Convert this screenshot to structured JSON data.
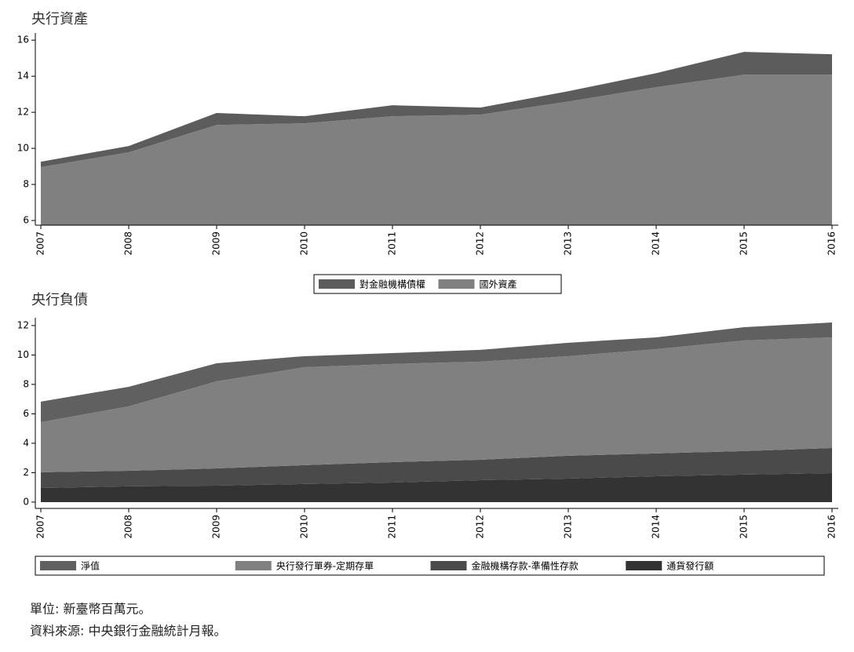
{
  "chart_data": [
    {
      "type": "area",
      "title": "央行資產",
      "categories": [
        "2007",
        "2008",
        "2009",
        "2010",
        "2011",
        "2012",
        "2013",
        "2014",
        "2015",
        "2016"
      ],
      "series": [
        {
          "name": "對金融機構債權",
          "color": "#5c5c5c",
          "values": [
            0.3,
            0.35,
            0.66,
            0.39,
            0.61,
            0.39,
            0.57,
            0.78,
            1.26,
            1.13
          ]
        },
        {
          "name": "國外資產",
          "color": "#808080",
          "values": [
            8.96,
            9.78,
            11.3,
            11.39,
            11.78,
            11.87,
            12.6,
            13.39,
            14.09,
            14.09
          ]
        }
      ],
      "ylim": [
        5.74,
        16.4
      ],
      "yticks": [
        6,
        8,
        10,
        12,
        14,
        16
      ],
      "legend": "bottom"
    },
    {
      "type": "area",
      "title": "央行負債",
      "categories": [
        "2007",
        "2008",
        "2009",
        "2010",
        "2011",
        "2012",
        "2013",
        "2014",
        "2015",
        "2016"
      ],
      "series": [
        {
          "name": "淨值",
          "color": "#606060",
          "values": [
            1.39,
            1.33,
            1.23,
            0.75,
            0.74,
            0.8,
            0.91,
            0.8,
            0.9,
            1.01
          ]
        },
        {
          "name": "央行發行單券-定期存單",
          "color": "#808080",
          "values": [
            3.41,
            4.38,
            5.92,
            6.66,
            6.67,
            6.67,
            6.77,
            7.09,
            7.52,
            7.52
          ]
        },
        {
          "name": "金融機構存款-準備性存款",
          "color": "#4a4a4a",
          "values": [
            1.07,
            1.06,
            1.17,
            1.28,
            1.39,
            1.39,
            1.55,
            1.55,
            1.6,
            1.71
          ]
        },
        {
          "name": "通貨發行額",
          "color": "#333333",
          "values": [
            0.96,
            1.07,
            1.12,
            1.23,
            1.33,
            1.49,
            1.6,
            1.76,
            1.87,
            1.97
          ]
        }
      ],
      "ylim": [
        -0.43,
        12.53
      ],
      "yticks": [
        0,
        2,
        4,
        6,
        8,
        10,
        12
      ],
      "legend": "bottom"
    }
  ],
  "notes": [
    "單位: 新臺幣百萬元。",
    "資料來源: 中央銀行金融統計月報。"
  ]
}
